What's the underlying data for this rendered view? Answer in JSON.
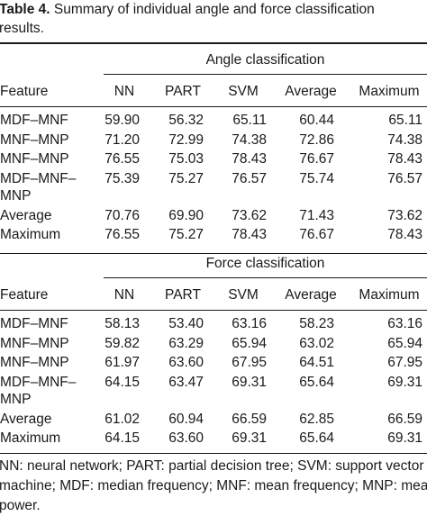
{
  "caption": {
    "label": "Table 4.",
    "text_line1": " Summary of individual angle and force classification",
    "text_line2": "results."
  },
  "table": {
    "columns": [
      "Feature",
      "NN",
      "PART",
      "SVM",
      "Average",
      "Maximum"
    ],
    "angle": {
      "title": "Angle classification",
      "rows": [
        {
          "feature": [
            "MDF–MNF"
          ],
          "values": [
            "59.90",
            "56.32",
            "65.11",
            "60.44",
            "65.11"
          ]
        },
        {
          "feature": [
            "MNF–MNP"
          ],
          "values": [
            "71.20",
            "72.99",
            "74.38",
            "72.86",
            "74.38"
          ]
        },
        {
          "feature": [
            "MNF–MNP"
          ],
          "values": [
            "76.55",
            "75.03",
            "78.43",
            "76.67",
            "78.43"
          ]
        },
        {
          "feature": [
            "MDF–MNF–",
            "MNP"
          ],
          "values": [
            "75.39",
            "75.27",
            "76.57",
            "75.74",
            "76.57"
          ]
        },
        {
          "feature": [
            "Average"
          ],
          "values": [
            "70.76",
            "69.90",
            "73.62",
            "71.43",
            "73.62"
          ]
        },
        {
          "feature": [
            "Maximum"
          ],
          "values": [
            "76.55",
            "75.27",
            "78.43",
            "76.67",
            "78.43"
          ]
        }
      ]
    },
    "force": {
      "title": "Force classification",
      "rows": [
        {
          "feature": [
            "MDF–MNF"
          ],
          "values": [
            "58.13",
            "53.40",
            "63.16",
            "58.23",
            "63.16"
          ]
        },
        {
          "feature": [
            "MNF–MNP"
          ],
          "values": [
            "59.82",
            "63.29",
            "65.94",
            "63.02",
            "65.94"
          ]
        },
        {
          "feature": [
            "MNF–MNP"
          ],
          "values": [
            "61.97",
            "63.60",
            "67.95",
            "64.51",
            "67.95"
          ]
        },
        {
          "feature": [
            "MDF–MNF–",
            "MNP"
          ],
          "values": [
            "64.15",
            "63.47",
            "69.31",
            "65.64",
            "69.31"
          ]
        },
        {
          "feature": [
            "Average"
          ],
          "values": [
            "61.02",
            "60.94",
            "66.59",
            "62.85",
            "66.59"
          ]
        },
        {
          "feature": [
            "Maximum"
          ],
          "values": [
            "64.15",
            "63.60",
            "69.31",
            "65.64",
            "69.31"
          ]
        }
      ]
    }
  },
  "footnote": {
    "line1": "NN: neural network; PART: partial decision tree; SVM: support vector",
    "line2": "machine; MDF: median frequency; MNF: mean frequency; MNP: mean",
    "line3": "power."
  }
}
